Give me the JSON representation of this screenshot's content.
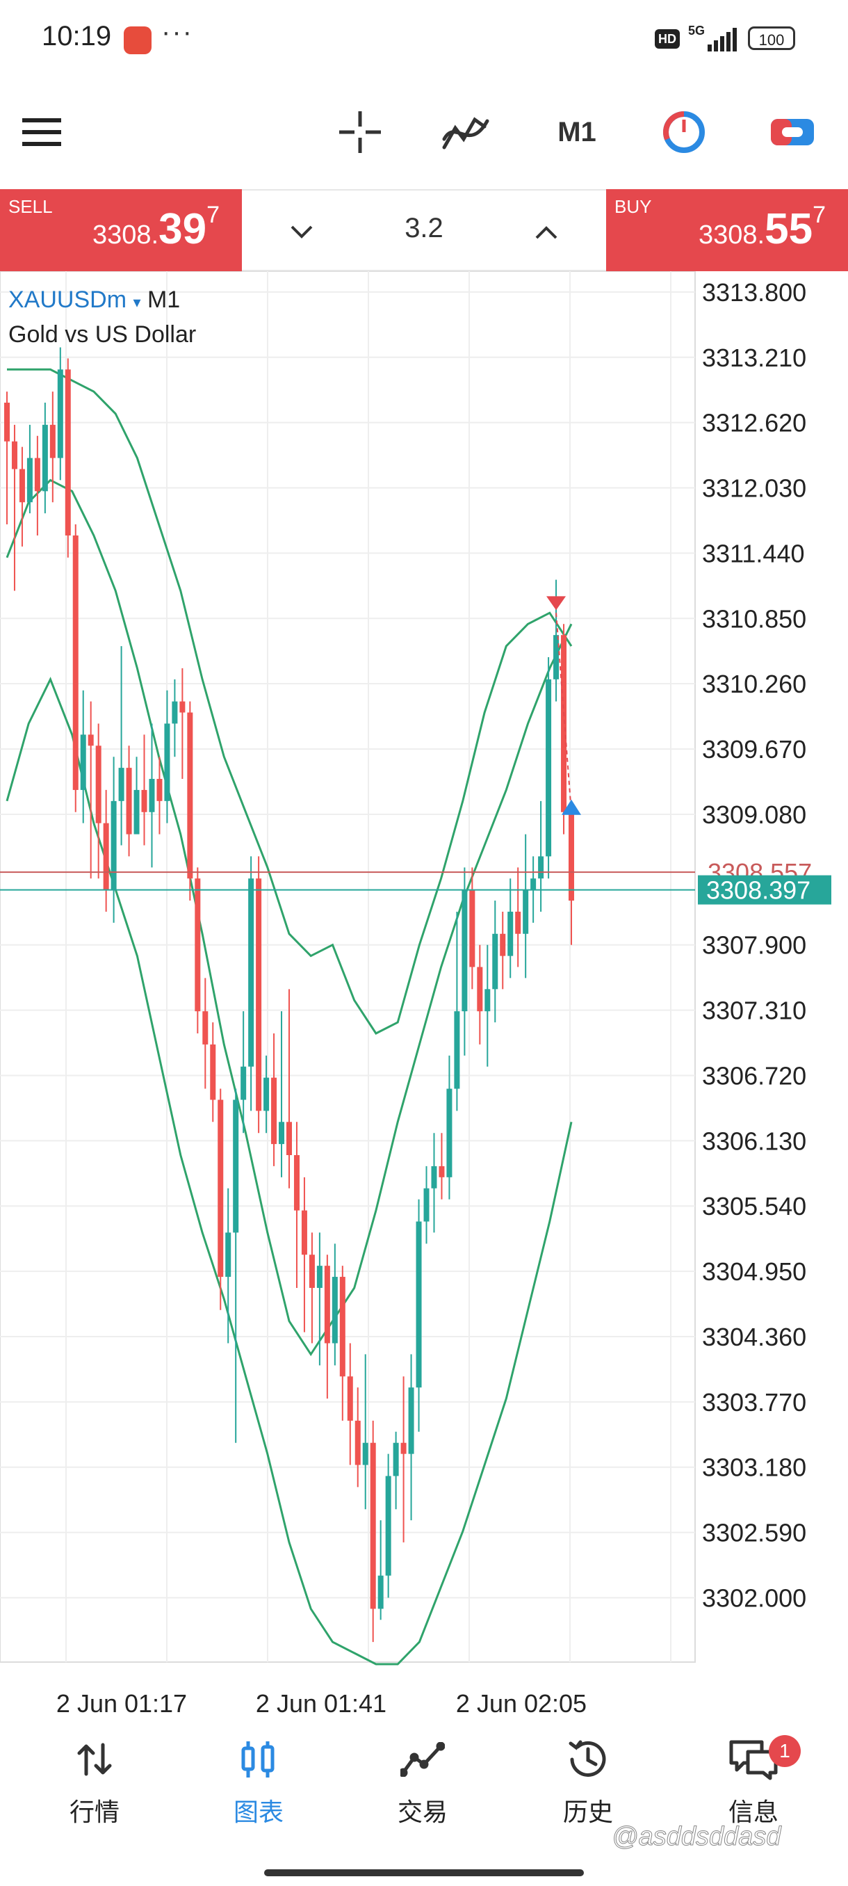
{
  "status_bar": {
    "time": "10:19",
    "dots": "···",
    "hd": "HD",
    "network": "5G",
    "battery": "100"
  },
  "toolbar": {
    "menu_icon": "hamburger-menu-icon",
    "crosshair_icon": "crosshair-icon",
    "indicators_icon": "indicators-icon",
    "timeframe": "M1",
    "objects_icon": "pie-clock-icon",
    "trade_icon": "trade-switch-icon"
  },
  "quote": {
    "sell": {
      "label": "SELL",
      "small": "3308.",
      "big": "39",
      "sup": "7"
    },
    "buy": {
      "label": "BUY",
      "small": "3308.",
      "big": "55",
      "sup": "7"
    },
    "lot": "3.2"
  },
  "symbol": {
    "name": "XAUUSDm",
    "arrow": "▾",
    "timeframe": "M1",
    "description": "Gold vs US Dollar"
  },
  "colors": {
    "bull": "#26a69a",
    "bear": "#ef5350",
    "band": "#2fa36b",
    "ask_line": "#c85a5a",
    "bid_line": "#27a69a",
    "sell_bg": "#e5484d"
  },
  "chart_data": {
    "type": "candlestick",
    "symbol": "XAUUSDm",
    "timeframe": "M1",
    "y_tick_labels": [
      "3313.800",
      "3313.210",
      "3312.620",
      "3312.030",
      "3311.440",
      "3310.850",
      "3310.260",
      "3309.670",
      "3309.080",
      "3308.557",
      "3308.397",
      "3307.900",
      "3307.310",
      "3306.720",
      "3306.130",
      "3305.540",
      "3304.950",
      "3304.360",
      "3303.770",
      "3303.180",
      "3302.590",
      "3302.000"
    ],
    "y_ticks": [
      3313.8,
      3313.21,
      3312.62,
      3312.03,
      3311.44,
      3310.85,
      3310.26,
      3309.67,
      3309.08,
      3307.9,
      3307.31,
      3306.72,
      3306.13,
      3305.54,
      3304.95,
      3304.36,
      3303.77,
      3303.18,
      3302.59,
      3302.0
    ],
    "ylim": [
      3301.45,
      3313.9
    ],
    "x_labels": [
      "2 Jun 01:17",
      "2 Jun 01:41",
      "2 Jun 02:05"
    ],
    "ask": 3308.557,
    "bid": 3308.397,
    "ask_label": "3308.557",
    "bid_label": "3308.397",
    "candles": [
      [
        3312.8,
        3312.45,
        3312.9,
        3311.7
      ],
      [
        3312.45,
        3312.2,
        3312.6,
        3311.1
      ],
      [
        3312.2,
        3311.9,
        3312.4,
        3311.5
      ],
      [
        3311.9,
        3312.3,
        3312.6,
        3311.8
      ],
      [
        3312.3,
        3312.0,
        3312.5,
        3311.6
      ],
      [
        3312.0,
        3312.6,
        3312.8,
        3311.8
      ],
      [
        3312.6,
        3312.3,
        3312.9,
        3311.9
      ],
      [
        3312.3,
        3313.1,
        3313.3,
        3312.1
      ],
      [
        3313.1,
        3311.6,
        3313.2,
        3311.4
      ],
      [
        3311.6,
        3309.3,
        3311.7,
        3309.1
      ],
      [
        3309.3,
        3309.8,
        3310.2,
        3309.0
      ],
      [
        3309.8,
        3309.7,
        3310.1,
        3308.5
      ],
      [
        3309.7,
        3309.0,
        3309.9,
        3308.5
      ],
      [
        3309.0,
        3308.4,
        3309.3,
        3308.2
      ],
      [
        3308.4,
        3309.2,
        3309.6,
        3308.1
      ],
      [
        3309.2,
        3309.5,
        3310.6,
        3308.8
      ],
      [
        3309.5,
        3308.9,
        3309.7,
        3308.7
      ],
      [
        3308.9,
        3309.3,
        3309.6,
        3309.0
      ],
      [
        3309.3,
        3309.1,
        3309.8,
        3308.8
      ],
      [
        3309.1,
        3309.4,
        3309.9,
        3308.6
      ],
      [
        3309.4,
        3309.2,
        3309.6,
        3308.9
      ],
      [
        3309.2,
        3309.9,
        3310.2,
        3309.0
      ],
      [
        3309.9,
        3310.1,
        3310.3,
        3309.6
      ],
      [
        3310.1,
        3310.0,
        3310.4,
        3309.4
      ],
      [
        3310.0,
        3308.5,
        3310.1,
        3308.3
      ],
      [
        3308.5,
        3307.3,
        3308.6,
        3307.1
      ],
      [
        3307.3,
        3307.0,
        3307.6,
        3306.6
      ],
      [
        3307.0,
        3306.5,
        3307.2,
        3306.3
      ],
      [
        3306.5,
        3304.9,
        3306.6,
        3304.6
      ],
      [
        3304.9,
        3305.3,
        3305.7,
        3304.3
      ],
      [
        3305.3,
        3306.5,
        3306.6,
        3303.4
      ],
      [
        3306.5,
        3306.8,
        3307.3,
        3306.2
      ],
      [
        3306.8,
        3308.5,
        3308.7,
        3306.4
      ],
      [
        3308.5,
        3306.4,
        3308.7,
        3306.2
      ],
      [
        3306.4,
        3306.7,
        3306.9,
        3306.2
      ],
      [
        3306.7,
        3306.1,
        3307.1,
        3305.9
      ],
      [
        3306.1,
        3306.3,
        3307.3,
        3305.8
      ],
      [
        3306.3,
        3306.0,
        3307.5,
        3305.7
      ],
      [
        3306.0,
        3305.5,
        3306.3,
        3304.8
      ],
      [
        3305.5,
        3305.1,
        3305.8,
        3304.4
      ],
      [
        3305.1,
        3304.8,
        3305.3,
        3304.3
      ],
      [
        3304.8,
        3305.0,
        3305.3,
        3304.1
      ],
      [
        3305.0,
        3304.3,
        3305.1,
        3303.8
      ],
      [
        3304.3,
        3304.9,
        3305.2,
        3304.1
      ],
      [
        3304.9,
        3304.0,
        3305.0,
        3303.6
      ],
      [
        3304.0,
        3303.6,
        3304.3,
        3303.2
      ],
      [
        3303.6,
        3303.2,
        3303.9,
        3303.0
      ],
      [
        3303.2,
        3303.4,
        3304.2,
        3302.8
      ],
      [
        3303.4,
        3301.9,
        3303.6,
        3301.6
      ],
      [
        3301.9,
        3302.2,
        3302.7,
        3301.8
      ],
      [
        3302.2,
        3303.1,
        3303.3,
        3302.0
      ],
      [
        3303.1,
        3303.4,
        3303.5,
        3302.8
      ],
      [
        3303.4,
        3303.3,
        3304.0,
        3302.5
      ],
      [
        3303.3,
        3303.9,
        3304.2,
        3302.7
      ],
      [
        3303.9,
        3305.4,
        3305.6,
        3303.5
      ],
      [
        3305.4,
        3305.7,
        3305.9,
        3305.2
      ],
      [
        3305.7,
        3305.9,
        3306.2,
        3305.3
      ],
      [
        3305.9,
        3305.8,
        3306.2,
        3305.6
      ],
      [
        3305.8,
        3306.6,
        3306.9,
        3305.6
      ],
      [
        3306.6,
        3307.3,
        3308.2,
        3306.4
      ],
      [
        3307.3,
        3308.4,
        3308.6,
        3306.9
      ],
      [
        3308.4,
        3307.7,
        3308.6,
        3307.5
      ],
      [
        3307.7,
        3307.3,
        3307.9,
        3307.0
      ],
      [
        3307.3,
        3307.5,
        3307.9,
        3306.8
      ],
      [
        3307.5,
        3308.0,
        3308.3,
        3307.2
      ],
      [
        3308.0,
        3307.8,
        3308.2,
        3307.5
      ],
      [
        3307.8,
        3308.2,
        3308.5,
        3307.6
      ],
      [
        3308.2,
        3308.0,
        3308.6,
        3307.7
      ],
      [
        3308.0,
        3308.4,
        3308.9,
        3307.6
      ],
      [
        3308.4,
        3308.5,
        3308.7,
        3308.1
      ],
      [
        3308.5,
        3308.7,
        3309.2,
        3308.2
      ],
      [
        3308.7,
        3310.3,
        3310.5,
        3308.5
      ],
      [
        3310.3,
        3310.7,
        3311.2,
        3310.1
      ],
      [
        3310.7,
        3309.1,
        3310.8,
        3308.9
      ],
      [
        3309.1,
        3308.3,
        3309.1,
        3307.9
      ]
    ],
    "bands": {
      "upper": [
        3313.1,
        3313.1,
        3313.1,
        3313.0,
        3312.9,
        3312.7,
        3312.3,
        3311.7,
        3311.1,
        3310.3,
        3309.6,
        3309.1,
        3308.6,
        3308.0,
        3307.8,
        3307.9,
        3307.4,
        3307.1,
        3307.2,
        3307.9,
        3308.5,
        3309.2,
        3310.0,
        3310.6,
        3310.8,
        3310.9,
        3310.6
      ],
      "middle": [
        3311.4,
        3311.9,
        3312.1,
        3312.0,
        3311.6,
        3311.1,
        3310.4,
        3309.6,
        3308.9,
        3308.0,
        3307.0,
        3306.2,
        3305.3,
        3304.5,
        3304.2,
        3304.5,
        3304.8,
        3305.5,
        3306.3,
        3307.0,
        3307.7,
        3308.3,
        3308.8,
        3309.3,
        3309.9,
        3310.4,
        3310.8
      ],
      "lower": [
        3309.2,
        3309.9,
        3310.3,
        3309.8,
        3309.0,
        3308.4,
        3307.8,
        3306.9,
        3306.0,
        3305.3,
        3304.7,
        3304.0,
        3303.3,
        3302.5,
        3301.9,
        3301.6,
        3301.5,
        3301.4,
        3301.4,
        3301.6,
        3302.1,
        3302.6,
        3303.2,
        3303.8,
        3304.6,
        3305.4,
        3306.3
      ]
    },
    "markers": [
      {
        "type": "sell-arrow",
        "price": 3310.9
      },
      {
        "type": "buy-arrow",
        "price": 3309.1
      }
    ]
  },
  "nav": [
    {
      "label": "行情",
      "icon": "quotes-arrows-icon"
    },
    {
      "label": "图表",
      "icon": "chart-candles-icon",
      "active": true
    },
    {
      "label": "交易",
      "icon": "trade-line-icon"
    },
    {
      "label": "历史",
      "icon": "history-clock-icon"
    },
    {
      "label": "信息",
      "icon": "messages-icon",
      "badge": "1"
    }
  ],
  "watermark": "@asddsddasd"
}
